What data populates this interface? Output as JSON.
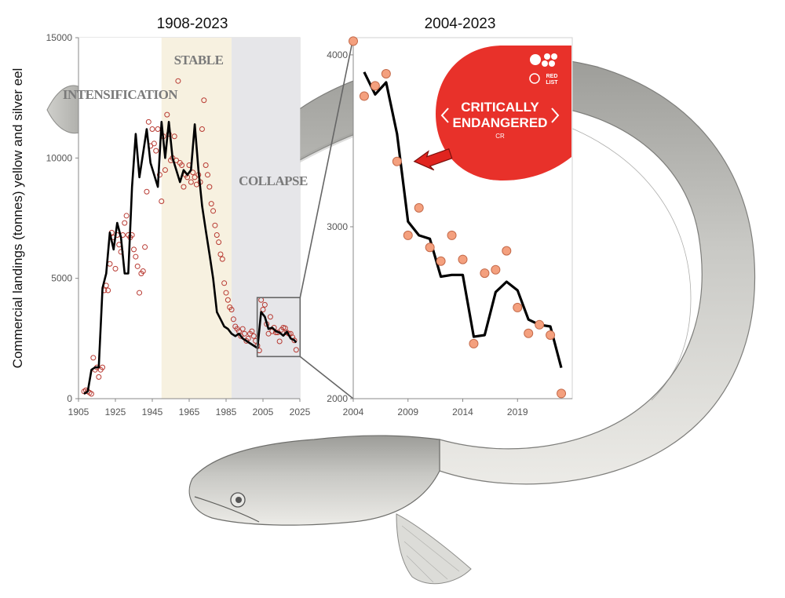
{
  "ylabel": "Commercial landings (tonnes) yellow and silver eel",
  "chart_data": [
    {
      "type": "line",
      "title": "1908-2023",
      "xlabel": "",
      "ylabel": "Commercial landings (tonnes) yellow and silver eel",
      "xlim": [
        1905,
        2025
      ],
      "ylim": [
        0,
        15000
      ],
      "xticks": [
        "1905",
        "1925",
        "1945",
        "1965",
        "1985",
        "2005",
        "2025"
      ],
      "yticks": [
        "0",
        "5000",
        "10000",
        "15000"
      ],
      "grid": false,
      "phases": [
        {
          "label": "INTENSIFICATION",
          "from": 1905,
          "to": 1950,
          "color": "#ffffff"
        },
        {
          "label": "STABLE",
          "from": 1950,
          "to": 1988,
          "color": "#f7f1e0"
        },
        {
          "label": "COLLAPSE",
          "from": 1988,
          "to": 2025,
          "color": "#e6e6e9"
        }
      ],
      "inset_box": {
        "x": [
          2004,
          2023
        ],
        "y": [
          1750,
          4200
        ]
      },
      "series": [
        {
          "style": "points",
          "color": "#b83a32",
          "x": [
            1908,
            1909,
            1910,
            1911,
            1912,
            1913,
            1914,
            1915,
            1916,
            1917,
            1918,
            1919,
            1920,
            1921,
            1922,
            1923,
            1924,
            1925,
            1926,
            1927,
            1928,
            1929,
            1930,
            1931,
            1932,
            1933,
            1934,
            1935,
            1936,
            1937,
            1938,
            1939,
            1940,
            1941,
            1942,
            1943,
            1944,
            1945,
            1946,
            1947,
            1948,
            1949,
            1950,
            1951,
            1952,
            1953,
            1954,
            1955,
            1956,
            1957,
            1958,
            1959,
            1960,
            1961,
            1962,
            1963,
            1964,
            1965,
            1966,
            1967,
            1968,
            1969,
            1970,
            1971,
            1972,
            1973,
            1974,
            1975,
            1976,
            1977,
            1978,
            1979,
            1980,
            1981,
            1982,
            1983,
            1984,
            1985,
            1986,
            1987,
            1988,
            1989,
            1990,
            1991,
            1992,
            1993,
            1994,
            1995,
            1996,
            1997,
            1998,
            1999,
            2000,
            2001,
            2002,
            2003,
            2004,
            2005,
            2006,
            2007,
            2008,
            2009,
            2010,
            2011,
            2012,
            2013,
            2014,
            2015,
            2016,
            2017,
            2018,
            2019,
            2020,
            2021,
            2022,
            2023
          ],
          "y": [
            300,
            350,
            300,
            250,
            200,
            1700,
            1200,
            1300,
            900,
            1200,
            1300,
            4500,
            4700,
            4500,
            5600,
            6900,
            6700,
            5400,
            6800,
            6400,
            6100,
            6800,
            7300,
            7600,
            6800,
            6700,
            6800,
            6200,
            5900,
            5500,
            4400,
            5200,
            5300,
            6300,
            8600,
            11500,
            10500,
            11200,
            10600,
            10300,
            11200,
            9300,
            8200,
            10900,
            9500,
            11800,
            11000,
            9900,
            10000,
            10900,
            9900,
            13200,
            9800,
            9700,
            8800,
            9300,
            9200,
            9700,
            9000,
            9400,
            9200,
            8900,
            9300,
            9000,
            11200,
            12400,
            9700,
            9300,
            8800,
            8100,
            7800,
            7200,
            6800,
            6500,
            6000,
            5800,
            4800,
            4400,
            4100,
            3800,
            3700,
            3300,
            3000,
            2900,
            2800,
            2600,
            2900,
            2700,
            2400,
            2500,
            2700,
            2800,
            2600,
            2400,
            2200,
            2000,
            4100,
            3700,
            3900,
            3100,
            2700,
            3400,
            2800,
            2950,
            2750,
            2750,
            2380,
            2860,
            2950,
            2930,
            2750,
            2700,
            2700,
            2550,
            2420,
            2030
          ]
        },
        {
          "style": "line",
          "color": "#000000",
          "x": [
            1908,
            1910,
            1912,
            1914,
            1916,
            1918,
            1920,
            1922,
            1924,
            1926,
            1928,
            1930,
            1932,
            1934,
            1936,
            1938,
            1940,
            1942,
            1944,
            1946,
            1948,
            1950,
            1952,
            1954,
            1956,
            1958,
            1960,
            1962,
            1964,
            1966,
            1968,
            1970,
            1972,
            1974,
            1976,
            1978,
            1980,
            1982,
            1984,
            1986,
            1988,
            1990,
            1992,
            1994,
            1996,
            1998,
            2000,
            2002,
            2004,
            2006,
            2008,
            2010,
            2012,
            2014,
            2016,
            2018,
            2020,
            2022,
            2023
          ],
          "y": [
            200,
            300,
            1200,
            1300,
            1300,
            4600,
            5200,
            6900,
            6200,
            7300,
            6700,
            5200,
            5200,
            8800,
            11000,
            9200,
            10200,
            11200,
            9800,
            9300,
            8800,
            11500,
            10000,
            11500,
            10000,
            9500,
            9000,
            9500,
            9300,
            9500,
            11400,
            9500,
            8000,
            7000,
            6000,
            5000,
            3600,
            3300,
            3000,
            2900,
            2700,
            2600,
            2700,
            2500,
            2400,
            2300,
            2200,
            2100,
            3600,
            3400,
            2900,
            2950,
            2800,
            2750,
            2620,
            2780,
            2500,
            2430,
            2330
          ]
        }
      ]
    },
    {
      "type": "line",
      "title": "2004-2023",
      "xlabel": "",
      "ylabel": "",
      "xlim": [
        2004,
        2024
      ],
      "ylim": [
        2000,
        4100
      ],
      "xticks": [
        "2004",
        "2009",
        "2014",
        "2019"
      ],
      "yticks": [
        "2000",
        "3000",
        "4000"
      ],
      "grid": false,
      "series": [
        {
          "style": "points",
          "color": "#f4a07e",
          "x": [
            2004,
            2005,
            2006,
            2007,
            2008,
            2009,
            2010,
            2011,
            2012,
            2013,
            2014,
            2015,
            2016,
            2017,
            2018,
            2019,
            2020,
            2021,
            2022,
            2023
          ],
          "y": [
            4080,
            3760,
            3820,
            3890,
            3380,
            2950,
            3110,
            2880,
            2800,
            2950,
            2810,
            2320,
            2730,
            2750,
            2860,
            2530,
            2380,
            2430,
            2370,
            2030
          ]
        },
        {
          "style": "line",
          "color": "#000000",
          "x": [
            2005,
            2006,
            2007,
            2008,
            2009,
            2010,
            2011,
            2012,
            2013,
            2014,
            2015,
            2016,
            2017,
            2018,
            2019,
            2020,
            2021,
            2022,
            2023
          ],
          "y": [
            3900,
            3770,
            3840,
            3540,
            3030,
            2950,
            2930,
            2710,
            2720,
            2720,
            2360,
            2370,
            2620,
            2680,
            2630,
            2460,
            2430,
            2420,
            2180
          ]
        }
      ],
      "annotation": {
        "badge_text": "CRITICALLY ENDANGERED",
        "badge_line1": "CRITICALLY",
        "badge_line2": "ENDANGERED",
        "badge_code": "CR",
        "logo_text_1": "RED",
        "logo_text_2": "LIST",
        "badge_color": "#e8312a",
        "arrow_points_to": {
          "x": 2009,
          "y": 3380
        }
      }
    }
  ]
}
